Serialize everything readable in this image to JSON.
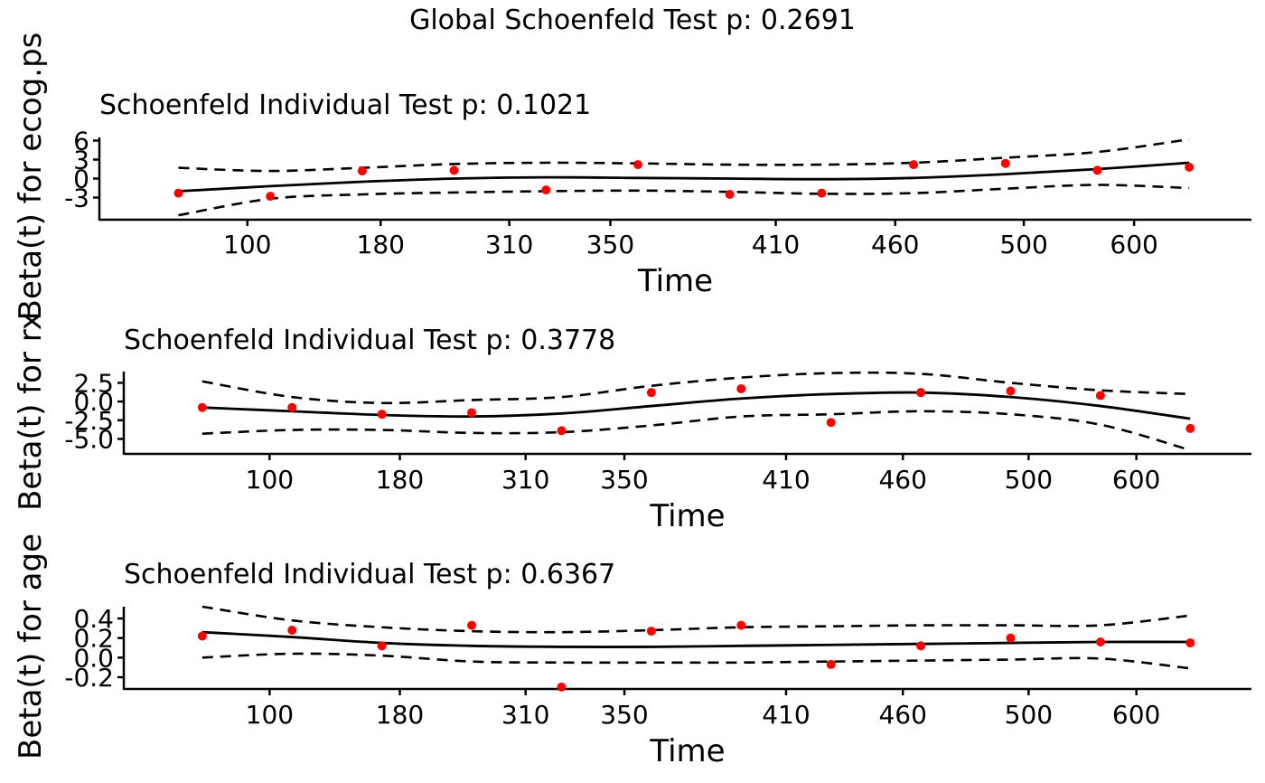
{
  "global_title": "Global Schoenfeld Test p: 0.2691",
  "colors": {
    "points": "#ff0000",
    "lines": "#000000"
  },
  "chart_data": [
    {
      "type": "scatter",
      "title": "Schoenfeld Individual Test p: 0.1021",
      "xlabel": "Time",
      "ylabel": "Beta(t) for ecog.ps",
      "x_tick_labels": [
        "100",
        "180",
        "310",
        "350",
        "410",
        "460",
        "500",
        "600"
      ],
      "y_ticks": [
        -3,
        0,
        3,
        6
      ],
      "y_tick_labels": [
        "-3",
        "0",
        "3",
        "6"
      ],
      "ylim": [
        -6.5,
        6.5
      ],
      "x_rank_range": [
        0.7,
        12.5
      ],
      "points": {
        "x_rank": [
          1,
          2,
          3,
          4,
          5,
          6,
          7,
          8,
          9,
          10,
          11,
          12
        ],
        "y": [
          -2.3,
          -2.8,
          1.2,
          1.3,
          -1.8,
          2.2,
          -2.5,
          -2.3,
          2.2,
          2.4,
          1.3,
          1.8
        ]
      },
      "fit": {
        "x_rank": [
          1,
          2,
          3,
          4,
          5,
          6,
          7,
          8,
          9,
          10,
          11,
          12
        ],
        "y": [
          -2.0,
          -1.2,
          -0.5,
          0.0,
          0.2,
          0.1,
          0.0,
          -0.1,
          0.1,
          0.7,
          1.5,
          2.5
        ]
      },
      "ci_upper": {
        "x_rank": [
          1,
          2,
          3,
          4,
          5,
          6,
          7,
          8,
          9,
          10,
          11,
          12
        ],
        "y": [
          1.7,
          1.2,
          1.7,
          2.3,
          2.5,
          2.4,
          2.2,
          2.2,
          2.5,
          3.3,
          4.2,
          6.2
        ]
      },
      "ci_lower": {
        "x_rank": [
          1,
          2,
          3,
          4,
          5,
          6,
          7,
          8,
          9,
          10,
          11,
          12
        ],
        "y": [
          -5.8,
          -3.2,
          -2.5,
          -2.2,
          -2.0,
          -1.9,
          -2.1,
          -2.4,
          -2.3,
          -1.6,
          -1.0,
          -1.5
        ]
      },
      "grid": false
    },
    {
      "type": "scatter",
      "title": "Schoenfeld Individual Test p: 0.3778",
      "xlabel": "Time",
      "ylabel": "Beta(t) for rx",
      "x_tick_labels": [
        "100",
        "180",
        "310",
        "350",
        "410",
        "460",
        "500",
        "600"
      ],
      "y_ticks": [
        -5.0,
        -2.5,
        0.0,
        2.5
      ],
      "y_tick_labels": [
        "-5.0",
        "-2.5",
        "0.0",
        "2.5"
      ],
      "ylim": [
        -7.0,
        4.0
      ],
      "x_rank_range": [
        0.7,
        12.5
      ],
      "points": {
        "x_rank": [
          1,
          2,
          3,
          4,
          5,
          6,
          7,
          8,
          9,
          10,
          11,
          12
        ],
        "y": [
          -0.8,
          -0.8,
          -1.7,
          -1.5,
          -3.9,
          1.2,
          1.7,
          -2.8,
          1.2,
          1.4,
          0.8,
          -3.6
        ]
      },
      "fit": {
        "x_rank": [
          1,
          2,
          3,
          4,
          5,
          6,
          7,
          8,
          9,
          10,
          11,
          12
        ],
        "y": [
          -0.8,
          -1.3,
          -1.8,
          -2.0,
          -1.6,
          -0.6,
          0.4,
          1.0,
          1.2,
          0.6,
          -0.6,
          -2.3
        ]
      },
      "ci_upper": {
        "x_rank": [
          1,
          2,
          3,
          4,
          5,
          6,
          7,
          8,
          9,
          10,
          11,
          12
        ],
        "y": [
          2.7,
          0.6,
          -0.2,
          0.2,
          0.6,
          2.1,
          3.2,
          3.8,
          3.7,
          2.5,
          1.5,
          1.0
        ]
      },
      "ci_lower": {
        "x_rank": [
          1,
          2,
          3,
          4,
          5,
          6,
          7,
          8,
          9,
          10,
          11,
          12
        ],
        "y": [
          -4.3,
          -3.8,
          -3.8,
          -4.2,
          -4.1,
          -3.2,
          -2.0,
          -1.7,
          -1.3,
          -1.7,
          -3.1,
          -6.5
        ]
      },
      "grid": false
    },
    {
      "type": "scatter",
      "title": "Schoenfeld Individual Test p: 0.6367",
      "xlabel": "Time",
      "ylabel": "Beta(t) for age",
      "x_tick_labels": [
        "100",
        "180",
        "310",
        "350",
        "410",
        "460",
        "500",
        "600"
      ],
      "y_ticks": [
        -0.2,
        0.0,
        0.2,
        0.4
      ],
      "y_tick_labels": [
        "-0.2",
        "0.0",
        "0.2",
        "0.4"
      ],
      "ylim": [
        -0.32,
        0.52
      ],
      "x_rank_range": [
        0.7,
        12.5
      ],
      "points": {
        "x_rank": [
          1,
          2,
          3,
          4,
          5,
          6,
          7,
          8,
          9,
          10,
          11,
          12
        ],
        "y": [
          0.22,
          0.28,
          0.12,
          0.33,
          -0.3,
          0.27,
          0.33,
          -0.07,
          0.12,
          0.2,
          0.16,
          0.15
        ]
      },
      "fit": {
        "x_rank": [
          1,
          2,
          3,
          4,
          5,
          6,
          7,
          8,
          9,
          10,
          11,
          12
        ],
        "y": [
          0.26,
          0.21,
          0.15,
          0.12,
          0.11,
          0.11,
          0.12,
          0.13,
          0.14,
          0.15,
          0.16,
          0.16
        ]
      },
      "ci_upper": {
        "x_rank": [
          1,
          2,
          3,
          4,
          5,
          6,
          7,
          8,
          9,
          10,
          11,
          12
        ],
        "y": [
          0.52,
          0.38,
          0.31,
          0.27,
          0.26,
          0.28,
          0.31,
          0.32,
          0.33,
          0.33,
          0.33,
          0.43
        ]
      },
      "ci_lower": {
        "x_rank": [
          1,
          2,
          3,
          4,
          5,
          6,
          7,
          8,
          9,
          10,
          11,
          12
        ],
        "y": [
          0.0,
          0.04,
          0.02,
          -0.04,
          -0.05,
          -0.05,
          -0.05,
          -0.04,
          -0.03,
          -0.02,
          -0.01,
          -0.11
        ]
      },
      "grid": false
    }
  ]
}
